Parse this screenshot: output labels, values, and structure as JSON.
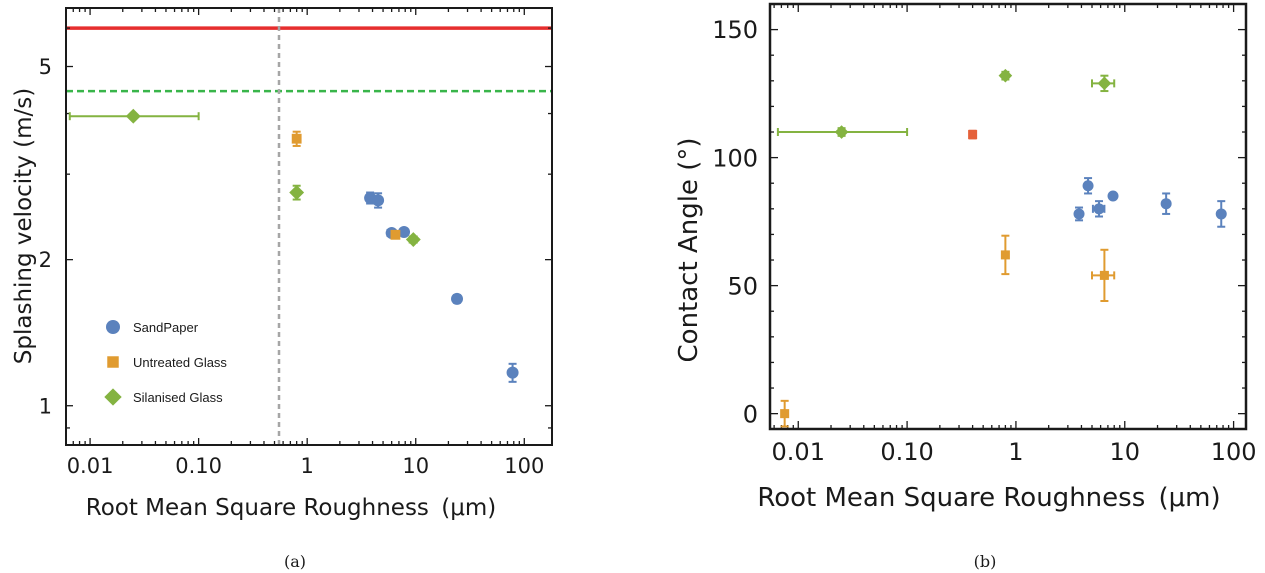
{
  "colors": {
    "sandpaper": "#5b82bd",
    "untreated": "#e09b30",
    "silanised": "#84b341",
    "red_marker": "#e5613a",
    "red_line": "#e62e2e",
    "green_dashed": "#39b54a",
    "grey_dotted": "#a6a6a6"
  },
  "chart_data": [
    {
      "type": "scatter",
      "caption": "(a)",
      "xlabel_main": "Root Mean Square Roughness",
      "xlabel_unit": "(μm)",
      "ylabel": "Splashing velocity (m/s)",
      "xscale": "log",
      "yscale": "log",
      "xlim": [
        0.006,
        180
      ],
      "ylim": [
        0.83,
        6.6
      ],
      "x_ticks": [
        {
          "value": 0.01,
          "label": "0.01"
        },
        {
          "value": 0.1,
          "label": "0.10"
        },
        {
          "value": 1,
          "label": "1"
        },
        {
          "value": 10,
          "label": "10"
        },
        {
          "value": 100,
          "label": "100"
        }
      ],
      "y_ticks": [
        {
          "value": 1,
          "label": "1"
        },
        {
          "value": 2,
          "label": "2"
        },
        {
          "value": 5,
          "label": "5"
        }
      ],
      "reference_lines": [
        {
          "kind": "horizontal",
          "value": 6.0,
          "style": "solid",
          "color_key": "red_line"
        },
        {
          "kind": "horizontal",
          "value": 4.45,
          "style": "dashed",
          "color_key": "green_dashed"
        },
        {
          "kind": "vertical",
          "value": 0.55,
          "style": "dotted",
          "color_key": "grey_dotted"
        }
      ],
      "legend": {
        "placement": "lower-left",
        "entries": [
          {
            "label": "SandPaper",
            "series": "sandpaper",
            "marker": "circle"
          },
          {
            "label": "Untreated Glass",
            "series": "untreated",
            "marker": "square"
          },
          {
            "label": "Silanised Glass",
            "series": "silanised",
            "marker": "diamond"
          }
        ]
      },
      "series": [
        {
          "key": "sandpaper",
          "marker": "circle",
          "color_key": "sandpaper",
          "points": [
            {
              "x": 3.8,
              "y": 2.68,
              "yerr": 0.07
            },
            {
              "x": 4.5,
              "y": 2.65,
              "yerr": 0.09
            },
            {
              "x": 6.0,
              "y": 2.27,
              "xerr_lo": 0.5,
              "xerr_hi": 0.5
            },
            {
              "x": 7.8,
              "y": 2.28
            },
            {
              "x": 24,
              "y": 1.66,
              "yerr": 0.03
            },
            {
              "x": 78,
              "y": 1.17,
              "yerr": 0.05
            }
          ]
        },
        {
          "key": "untreated",
          "marker": "square",
          "color_key": "untreated",
          "points": [
            {
              "x": 0.8,
              "y": 3.55,
              "yerr": 0.12
            },
            {
              "x": 6.5,
              "y": 2.25
            }
          ]
        },
        {
          "key": "silanised",
          "marker": "diamond",
          "color_key": "silanised",
          "points": [
            {
              "x": 0.025,
              "y": 3.95,
              "xerr_lo": 0.0185,
              "xerr_hi": 0.075
            },
            {
              "x": 0.8,
              "y": 2.75,
              "yerr": 0.09
            },
            {
              "x": 9.5,
              "y": 2.2,
              "xerr_lo": 0.7,
              "xerr_hi": 0.7
            }
          ]
        }
      ]
    },
    {
      "type": "scatter",
      "caption": "(b)",
      "xlabel_main": "Root Mean Square Roughness",
      "xlabel_unit": "(μm)",
      "ylabel": "Contact Angle (°)",
      "xscale": "log",
      "yscale": "linear",
      "xlim": [
        0.0055,
        130
      ],
      "ylim": [
        -6,
        160
      ],
      "x_ticks": [
        {
          "value": 0.01,
          "label": "0.01"
        },
        {
          "value": 0.1,
          "label": "0.10"
        },
        {
          "value": 1,
          "label": "1"
        },
        {
          "value": 10,
          "label": "10"
        },
        {
          "value": 100,
          "label": "100"
        }
      ],
      "y_ticks": [
        {
          "value": 0,
          "label": "0"
        },
        {
          "value": 50,
          "label": "50"
        },
        {
          "value": 100,
          "label": "100"
        },
        {
          "value": 150,
          "label": "150"
        }
      ],
      "series": [
        {
          "key": "sandpaper",
          "marker": "circle",
          "color_key": "sandpaper",
          "points": [
            {
              "x": 3.8,
              "y": 78,
              "yerr": 2.5
            },
            {
              "x": 4.6,
              "y": 89,
              "yerr": 3
            },
            {
              "x": 5.8,
              "y": 80,
              "yerr": 3,
              "xerr_lo": 0.7,
              "xerr_hi": 0.7
            },
            {
              "x": 7.8,
              "y": 85
            },
            {
              "x": 24,
              "y": 82,
              "yerr": 4
            },
            {
              "x": 77,
              "y": 78,
              "yerr": 5
            }
          ]
        },
        {
          "key": "untreated",
          "marker": "square",
          "color_key": "untreated",
          "points": [
            {
              "x": 0.0075,
              "y": 0,
              "yerr": 5
            },
            {
              "x": 0.8,
              "y": 62,
              "yerr": 7.5
            },
            {
              "x": 6.5,
              "y": 54,
              "yerr": 10,
              "xerr_lo": 1.5,
              "xerr_hi": 1.5
            }
          ]
        },
        {
          "key": "silanised",
          "marker": "diamond",
          "color_key": "silanised",
          "points": [
            {
              "x": 0.025,
              "y": 110,
              "yerr": 1.5,
              "xerr_lo": 0.0185,
              "xerr_hi": 0.075
            },
            {
              "x": 0.8,
              "y": 132,
              "yerr": 1.5
            },
            {
              "x": 6.5,
              "y": 129,
              "yerr": 3,
              "xerr_lo": 1.5,
              "xerr_hi": 1.5
            }
          ]
        },
        {
          "key": "red",
          "marker": "square",
          "color_key": "red_marker",
          "points": [
            {
              "x": 0.4,
              "y": 109,
              "yerr": 1.5
            }
          ]
        }
      ]
    }
  ]
}
